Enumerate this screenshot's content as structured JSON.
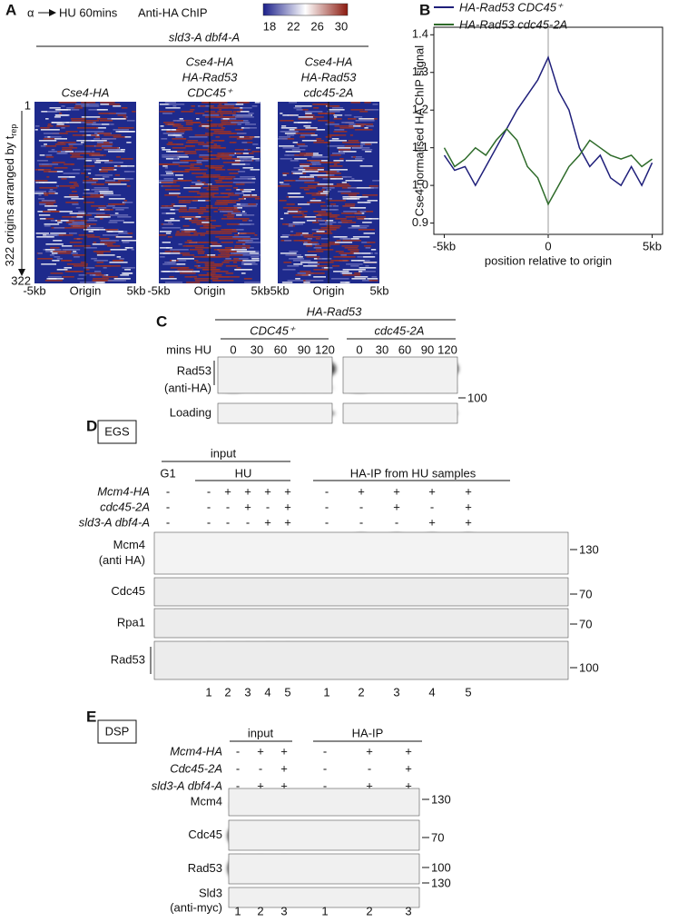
{
  "panel_a": {
    "label": "A",
    "treatment_start": "α",
    "treatment": "HU 60mins",
    "assay": "Anti-HA ChIP",
    "genotype": "sld3-A dbf4-A",
    "colorbar_ticks": [
      18,
      22,
      26,
      30
    ],
    "columns": [
      [
        "Cse4-HA"
      ],
      [
        "Cse4-HA",
        "HA-Rad53",
        "CDC45⁺"
      ],
      [
        "Cse4-HA",
        "HA-Rad53",
        "cdc45-2A"
      ]
    ],
    "y_label": "322 origins arranged by t",
    "y_label_sub": "rep",
    "y_start": 1,
    "y_end": 322,
    "x_labels": [
      "-5kb",
      "Origin",
      "5kb"
    ]
  },
  "panel_b": {
    "label": "B"
  },
  "chart_data": {
    "type": "line",
    "x_label": "position relative to origin",
    "y_label": "Cse4 normalised HA ChIP signal",
    "x": [
      -5,
      -4.5,
      -4,
      -3.5,
      -3,
      -2.5,
      -2,
      -1.5,
      -1,
      -0.5,
      0,
      0.5,
      1,
      1.5,
      2,
      2.5,
      3,
      3.5,
      4,
      4.5,
      5
    ],
    "series": [
      {
        "name": "HA-Rad53 CDC45⁺",
        "color": "#1f1f7a",
        "values": [
          1.08,
          1.04,
          1.05,
          1.0,
          1.05,
          1.1,
          1.15,
          1.2,
          1.24,
          1.28,
          1.34,
          1.25,
          1.2,
          1.1,
          1.05,
          1.08,
          1.02,
          1.0,
          1.05,
          1.0,
          1.06
        ]
      },
      {
        "name": "HA-Rad53 cdc45-2A",
        "color": "#2e6b2a",
        "values": [
          1.1,
          1.05,
          1.07,
          1.1,
          1.08,
          1.12,
          1.15,
          1.12,
          1.05,
          1.02,
          0.95,
          1.0,
          1.05,
          1.08,
          1.12,
          1.1,
          1.08,
          1.07,
          1.08,
          1.05,
          1.07
        ]
      }
    ],
    "xlim": [
      -5.5,
      5.5
    ],
    "ylim": [
      0.87,
      1.42
    ],
    "xticks": [
      {
        "value": -5,
        "label": "-5kb"
      },
      0,
      {
        "value": 5,
        "label": "5kb"
      }
    ],
    "yticks": [
      0.9,
      {
        "value": 1,
        "label": "1.0"
      },
      1.1,
      1.2,
      1.3,
      1.4
    ],
    "legend": "top"
  },
  "panel_c": {
    "label": "C",
    "header": "HA-Rad53",
    "groups": [
      "CDC45⁺",
      "cdc45-2A"
    ],
    "time_label": "mins HU",
    "times": [
      0,
      30,
      60,
      90,
      120
    ],
    "blots": [
      [
        "Rad53",
        "(anti-HA)"
      ],
      [
        "Loading"
      ]
    ],
    "size_marker": 100
  },
  "panel_d": {
    "label": "D",
    "crosslinker": "EGS",
    "input": "input",
    "g1": "G1",
    "hu": "HU",
    "ip": "HA-IP from HU samples",
    "conditions": [
      {
        "name": "Mcm4-HA",
        "input": [
          "-",
          "-",
          "+",
          "+",
          "+",
          "+"
        ],
        "ip": [
          "-",
          "+",
          "+",
          "+",
          "+"
        ]
      },
      {
        "name": "cdc45-2A",
        "input": [
          "-",
          "-",
          "-",
          "+",
          "-",
          "+"
        ],
        "ip": [
          "-",
          "-",
          "+",
          "-",
          "+"
        ]
      },
      {
        "name": "sld3-A dbf4-A",
        "input": [
          "-",
          "-",
          "-",
          "-",
          "+",
          "+"
        ],
        "ip": [
          "-",
          "-",
          "-",
          "+",
          "+"
        ]
      }
    ],
    "blots": [
      {
        "name": [
          "Mcm4",
          "(anti HA)"
        ],
        "marker": 130
      },
      {
        "name": [
          "Cdc45"
        ],
        "marker": 70
      },
      {
        "name": [
          "Rpa1"
        ],
        "marker": 70
      },
      {
        "name": [
          "Rad53"
        ],
        "marker": 100
      }
    ],
    "lanes": [
      1,
      2,
      3,
      4,
      5
    ]
  },
  "panel_e": {
    "label": "E",
    "crosslinker": "DSP",
    "input": "input",
    "ip": "HA-IP",
    "conditions": [
      {
        "name": "Mcm4-HA",
        "input": [
          "-",
          "+",
          "+"
        ],
        "ip": [
          "-",
          "+",
          "+"
        ]
      },
      {
        "name": "Cdc45-2A",
        "input": [
          "-",
          "-",
          "+"
        ],
        "ip": [
          "-",
          "-",
          "+"
        ]
      },
      {
        "name": "sld3-A dbf4-A",
        "input": [
          "-",
          "+",
          "+"
        ],
        "ip": [
          "-",
          "+",
          "+"
        ]
      }
    ],
    "blots": [
      {
        "name": [
          "Mcm4"
        ],
        "marker": 130
      },
      {
        "name": [
          "Cdc45"
        ],
        "marker": 70
      },
      {
        "name": [
          "Rad53"
        ],
        "marker": 100
      },
      {
        "name": [
          "Sld3",
          "(anti-myc)"
        ],
        "marker": 130
      }
    ],
    "lanes": [
      1,
      2,
      3
    ]
  }
}
